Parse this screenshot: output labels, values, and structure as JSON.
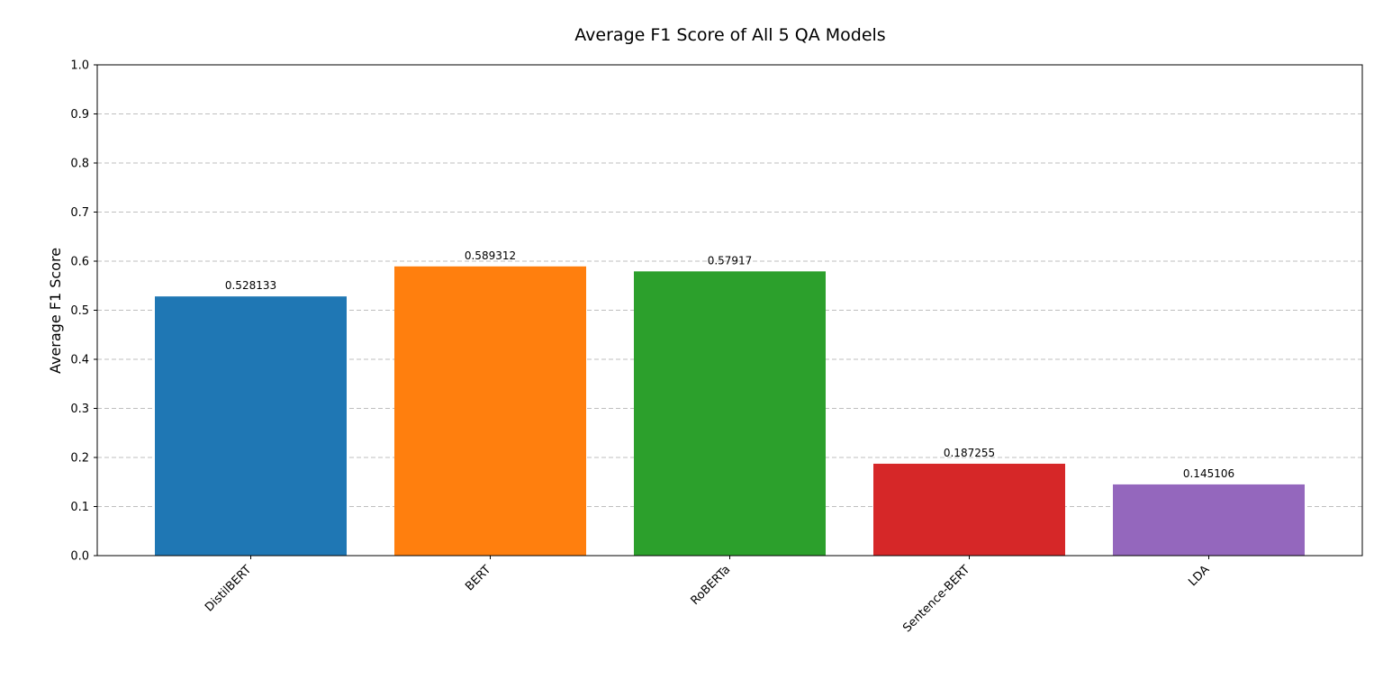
{
  "chart_data": {
    "type": "bar",
    "title": "Average F1 Score of All 5 QA Models",
    "xlabel": "",
    "ylabel": "Average F1 Score",
    "categories": [
      "DistilBERT",
      "BERT",
      "RoBERTa",
      "Sentence-BERT",
      "LDA"
    ],
    "values": [
      0.528133,
      0.589312,
      0.57917,
      0.187255,
      0.145106
    ],
    "value_labels": [
      "0.528133",
      "0.589312",
      "0.57917",
      "0.187255",
      "0.145106"
    ],
    "colors": [
      "#1f77b4",
      "#ff7f0e",
      "#2ca02c",
      "#d62728",
      "#9467bd"
    ],
    "ylim": [
      0,
      1.0
    ],
    "yticks": [
      "0.0",
      "0.1",
      "0.2",
      "0.3",
      "0.4",
      "0.5",
      "0.6",
      "0.7",
      "0.8",
      "0.9",
      "1.0"
    ],
    "grid": "y-dashed",
    "legend": "none"
  }
}
